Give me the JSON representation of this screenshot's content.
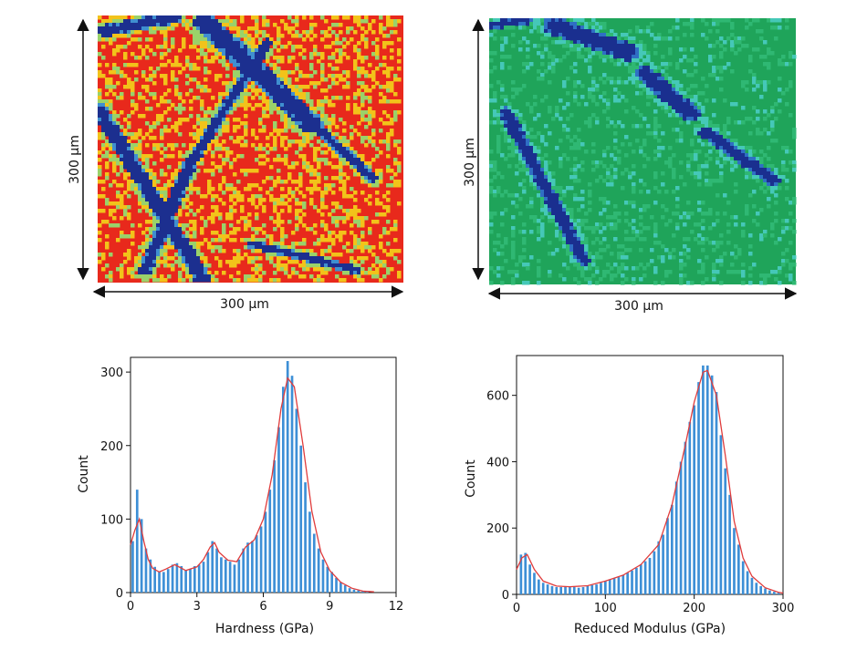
{
  "maps": [
    {
      "name": "hardness-map",
      "x_scale_label": "300 µm",
      "y_scale_label": "300 µm",
      "palette": [
        "#e8291c",
        "#f2c31a",
        "#9ad26a",
        "#3f8fd0",
        "#1c2f8f"
      ]
    },
    {
      "name": "modulus-map",
      "x_scale_label": "300 µm",
      "y_scale_label": "300 µm",
      "palette": [
        "#1fa45a",
        "#2fb873",
        "#45c8b8",
        "#2f6fc4",
        "#1a2f8f"
      ]
    }
  ],
  "chart_data": [
    {
      "type": "bar",
      "title": "",
      "xlabel": "Hardness (GPa)",
      "ylabel": "Count",
      "xlim": [
        0,
        12
      ],
      "ylim": [
        0,
        320
      ],
      "xticks": [
        0,
        3,
        6,
        9,
        12
      ],
      "yticks": [
        0,
        100,
        200,
        300
      ],
      "bar_color": "#3d8fd6",
      "fit_color": "#e03c3c",
      "bins": [
        {
          "x": 0.1,
          "y": 70
        },
        {
          "x": 0.3,
          "y": 140
        },
        {
          "x": 0.5,
          "y": 100
        },
        {
          "x": 0.7,
          "y": 60
        },
        {
          "x": 0.9,
          "y": 45
        },
        {
          "x": 1.1,
          "y": 35
        },
        {
          "x": 1.3,
          "y": 28
        },
        {
          "x": 1.5,
          "y": 28
        },
        {
          "x": 1.7,
          "y": 32
        },
        {
          "x": 1.9,
          "y": 38
        },
        {
          "x": 2.1,
          "y": 40
        },
        {
          "x": 2.3,
          "y": 36
        },
        {
          "x": 2.5,
          "y": 30
        },
        {
          "x": 2.7,
          "y": 32
        },
        {
          "x": 2.9,
          "y": 36
        },
        {
          "x": 3.1,
          "y": 38
        },
        {
          "x": 3.3,
          "y": 42
        },
        {
          "x": 3.5,
          "y": 55
        },
        {
          "x": 3.7,
          "y": 70
        },
        {
          "x": 3.9,
          "y": 60
        },
        {
          "x": 4.1,
          "y": 48
        },
        {
          "x": 4.3,
          "y": 45
        },
        {
          "x": 4.5,
          "y": 42
        },
        {
          "x": 4.7,
          "y": 38
        },
        {
          "x": 4.9,
          "y": 45
        },
        {
          "x": 5.1,
          "y": 60
        },
        {
          "x": 5.3,
          "y": 68
        },
        {
          "x": 5.5,
          "y": 70
        },
        {
          "x": 5.7,
          "y": 78
        },
        {
          "x": 5.9,
          "y": 90
        },
        {
          "x": 6.1,
          "y": 110
        },
        {
          "x": 6.3,
          "y": 140
        },
        {
          "x": 6.5,
          "y": 180
        },
        {
          "x": 6.7,
          "y": 225
        },
        {
          "x": 6.9,
          "y": 280
        },
        {
          "x": 7.1,
          "y": 315
        },
        {
          "x": 7.3,
          "y": 295
        },
        {
          "x": 7.5,
          "y": 250
        },
        {
          "x": 7.7,
          "y": 200
        },
        {
          "x": 7.9,
          "y": 150
        },
        {
          "x": 8.1,
          "y": 110
        },
        {
          "x": 8.3,
          "y": 80
        },
        {
          "x": 8.5,
          "y": 60
        },
        {
          "x": 8.7,
          "y": 45
        },
        {
          "x": 8.9,
          "y": 35
        },
        {
          "x": 9.1,
          "y": 28
        },
        {
          "x": 9.3,
          "y": 20
        },
        {
          "x": 9.5,
          "y": 14
        },
        {
          "x": 9.7,
          "y": 10
        },
        {
          "x": 9.9,
          "y": 6
        },
        {
          "x": 10.1,
          "y": 4
        },
        {
          "x": 10.3,
          "y": 3
        },
        {
          "x": 10.5,
          "y": 2
        },
        {
          "x": 10.7,
          "y": 1
        }
      ],
      "fit": [
        [
          0.0,
          65
        ],
        [
          0.2,
          85
        ],
        [
          0.4,
          100
        ],
        [
          0.6,
          70
        ],
        [
          0.8,
          45
        ],
        [
          1.0,
          33
        ],
        [
          1.3,
          28
        ],
        [
          1.6,
          32
        ],
        [
          2.0,
          38
        ],
        [
          2.5,
          30
        ],
        [
          3.0,
          35
        ],
        [
          3.3,
          45
        ],
        [
          3.6,
          62
        ],
        [
          3.8,
          68
        ],
        [
          4.0,
          55
        ],
        [
          4.4,
          44
        ],
        [
          4.8,
          42
        ],
        [
          5.2,
          62
        ],
        [
          5.6,
          72
        ],
        [
          6.0,
          100
        ],
        [
          6.4,
          160
        ],
        [
          6.8,
          250
        ],
        [
          7.1,
          292
        ],
        [
          7.4,
          280
        ],
        [
          7.8,
          200
        ],
        [
          8.2,
          110
        ],
        [
          8.6,
          55
        ],
        [
          9.0,
          30
        ],
        [
          9.5,
          14
        ],
        [
          10.0,
          6
        ],
        [
          10.5,
          2
        ],
        [
          11.0,
          1
        ]
      ]
    },
    {
      "type": "bar",
      "title": "",
      "xlabel": "Reduced Modulus (GPa)",
      "ylabel": "Count",
      "xlim": [
        0,
        300
      ],
      "ylim": [
        0,
        720
      ],
      "xticks": [
        0,
        100,
        200,
        300
      ],
      "yticks": [
        0,
        200,
        400,
        600
      ],
      "bar_color": "#3d8fd6",
      "fit_color": "#e03c3c",
      "bins": [
        {
          "x": 5,
          "y": 120
        },
        {
          "x": 10,
          "y": 125
        },
        {
          "x": 15,
          "y": 90
        },
        {
          "x": 20,
          "y": 65
        },
        {
          "x": 25,
          "y": 45
        },
        {
          "x": 30,
          "y": 35
        },
        {
          "x": 35,
          "y": 30
        },
        {
          "x": 40,
          "y": 25
        },
        {
          "x": 45,
          "y": 22
        },
        {
          "x": 50,
          "y": 22
        },
        {
          "x": 55,
          "y": 24
        },
        {
          "x": 60,
          "y": 22
        },
        {
          "x": 65,
          "y": 22
        },
        {
          "x": 70,
          "y": 20
        },
        {
          "x": 75,
          "y": 22
        },
        {
          "x": 80,
          "y": 25
        },
        {
          "x": 85,
          "y": 28
        },
        {
          "x": 90,
          "y": 30
        },
        {
          "x": 95,
          "y": 35
        },
        {
          "x": 100,
          "y": 40
        },
        {
          "x": 105,
          "y": 45
        },
        {
          "x": 110,
          "y": 48
        },
        {
          "x": 115,
          "y": 52
        },
        {
          "x": 120,
          "y": 58
        },
        {
          "x": 125,
          "y": 65
        },
        {
          "x": 130,
          "y": 72
        },
        {
          "x": 135,
          "y": 80
        },
        {
          "x": 140,
          "y": 90
        },
        {
          "x": 145,
          "y": 100
        },
        {
          "x": 150,
          "y": 110
        },
        {
          "x": 155,
          "y": 130
        },
        {
          "x": 160,
          "y": 160
        },
        {
          "x": 165,
          "y": 180
        },
        {
          "x": 170,
          "y": 230
        },
        {
          "x": 175,
          "y": 270
        },
        {
          "x": 180,
          "y": 340
        },
        {
          "x": 185,
          "y": 400
        },
        {
          "x": 190,
          "y": 460
        },
        {
          "x": 195,
          "y": 520
        },
        {
          "x": 200,
          "y": 570
        },
        {
          "x": 205,
          "y": 640
        },
        {
          "x": 210,
          "y": 690
        },
        {
          "x": 215,
          "y": 690
        },
        {
          "x": 220,
          "y": 660
        },
        {
          "x": 225,
          "y": 610
        },
        {
          "x": 230,
          "y": 480
        },
        {
          "x": 235,
          "y": 380
        },
        {
          "x": 240,
          "y": 300
        },
        {
          "x": 245,
          "y": 200
        },
        {
          "x": 250,
          "y": 150
        },
        {
          "x": 255,
          "y": 100
        },
        {
          "x": 260,
          "y": 70
        },
        {
          "x": 265,
          "y": 50
        },
        {
          "x": 270,
          "y": 35
        },
        {
          "x": 275,
          "y": 25
        },
        {
          "x": 280,
          "y": 18
        },
        {
          "x": 285,
          "y": 12
        },
        {
          "x": 290,
          "y": 8
        },
        {
          "x": 295,
          "y": 5
        }
      ],
      "fit": [
        [
          0,
          75
        ],
        [
          6,
          110
        ],
        [
          12,
          120
        ],
        [
          20,
          75
        ],
        [
          30,
          40
        ],
        [
          45,
          25
        ],
        [
          60,
          23
        ],
        [
          80,
          26
        ],
        [
          100,
          40
        ],
        [
          120,
          58
        ],
        [
          140,
          90
        ],
        [
          160,
          150
        ],
        [
          175,
          270
        ],
        [
          190,
          450
        ],
        [
          200,
          580
        ],
        [
          210,
          670
        ],
        [
          215,
          675
        ],
        [
          225,
          600
        ],
        [
          235,
          420
        ],
        [
          245,
          220
        ],
        [
          255,
          110
        ],
        [
          265,
          55
        ],
        [
          280,
          20
        ],
        [
          295,
          6
        ],
        [
          300,
          4
        ]
      ]
    }
  ]
}
